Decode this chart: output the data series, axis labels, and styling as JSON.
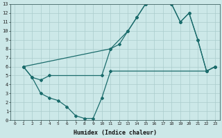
{
  "xlabel": "Humidex (Indice chaleur)",
  "bg_color": "#cce8e8",
  "grid_color": "#aacccc",
  "line_color": "#1a6b6b",
  "xlim": [
    -0.5,
    23.5
  ],
  "ylim": [
    0,
    13
  ],
  "line1_x": [
    1,
    2,
    3,
    4,
    10,
    11,
    12,
    13,
    14,
    15,
    16,
    17,
    18,
    19,
    20,
    21,
    22,
    23
  ],
  "line1_y": [
    6,
    4.8,
    4.5,
    5.0,
    5.0,
    8.0,
    8.5,
    10.0,
    11.5,
    13.0,
    13.3,
    13.2,
    13.0,
    11.0,
    12.0,
    9.0,
    5.5,
    6.0
  ],
  "line2_x": [
    1,
    2,
    3,
    4,
    5,
    6,
    7,
    8,
    9,
    10,
    11,
    22,
    23
  ],
  "line2_y": [
    6,
    4.8,
    3.0,
    2.5,
    2.2,
    1.5,
    0.5,
    0.2,
    0.2,
    2.5,
    5.5,
    5.5,
    6.0
  ],
  "line3_x": [
    1,
    11,
    13,
    14,
    15,
    16,
    17,
    18,
    19,
    20,
    21,
    22,
    23
  ],
  "line3_y": [
    6,
    8.0,
    10.0,
    11.5,
    13.0,
    13.3,
    13.2,
    13.0,
    11.0,
    12.0,
    9.0,
    5.5,
    6.0
  ],
  "xtick_labels": [
    "0",
    "1",
    "2",
    "3",
    "4",
    "5",
    "6",
    "7",
    "8",
    "9",
    "10",
    "11",
    "12",
    "13",
    "14",
    "15",
    "16",
    "17",
    "18",
    "19",
    "20",
    "21",
    "22",
    "23"
  ],
  "ytick_labels": [
    "0",
    "1",
    "2",
    "3",
    "4",
    "5",
    "6",
    "7",
    "8",
    "9",
    "10",
    "11",
    "12",
    "13"
  ]
}
